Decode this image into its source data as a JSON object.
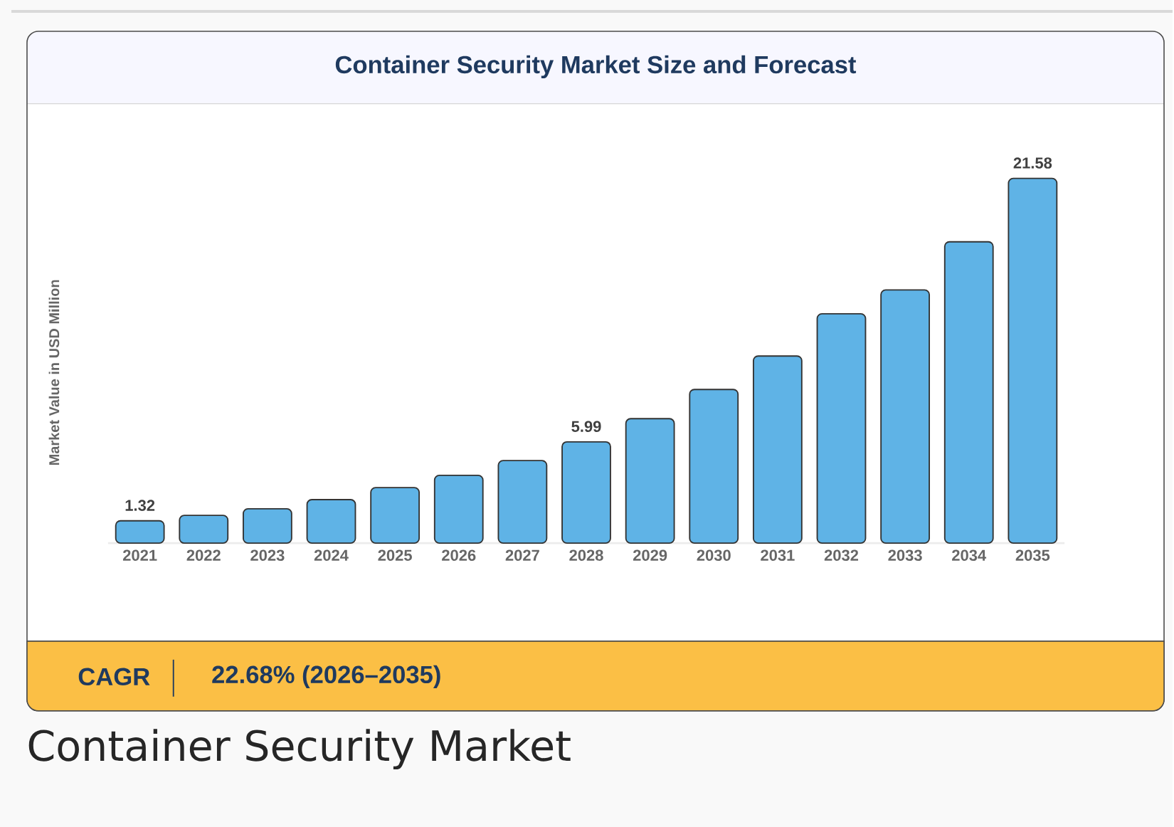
{
  "chart_data": {
    "type": "bar",
    "title": "Container Security Market Size and Forecast",
    "ylabel": "Market Value in USD Million",
    "categories": [
      "2021",
      "2022",
      "2023",
      "2024",
      "2025",
      "2026",
      "2027",
      "2028",
      "2029",
      "2030",
      "2031",
      "2032",
      "2033",
      "2034",
      "2035"
    ],
    "values": [
      1.32,
      1.64,
      2.03,
      2.57,
      3.28,
      4.01,
      4.88,
      5.99,
      7.36,
      9.09,
      11.07,
      13.57,
      14.98,
      17.83,
      21.58
    ],
    "value_labels": [
      "1.32",
      null,
      null,
      null,
      null,
      null,
      null,
      "5.99",
      null,
      null,
      null,
      null,
      null,
      null,
      "21.58"
    ],
    "color": "#5fb3e6",
    "annotations": [
      "CAGR",
      "22.68% (2026–2035)",
      "Container Security Market"
    ]
  }
}
